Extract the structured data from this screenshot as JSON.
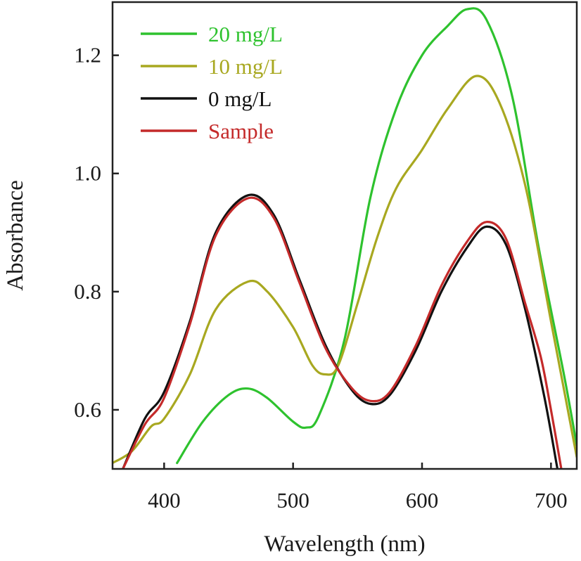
{
  "chart_data": {
    "type": "line",
    "title": "",
    "xlabel": "Wavelength (nm)",
    "ylabel": "Absorbance",
    "xlim": [
      360,
      720
    ],
    "ylim": [
      0.5,
      1.29
    ],
    "x_ticks": [
      400,
      500,
      600,
      700
    ],
    "x_tick_labels": [
      "400",
      "500",
      "600",
      "700"
    ],
    "y_ticks": [
      0.6,
      0.8,
      1.0,
      1.2
    ],
    "y_tick_labels": [
      "0.6",
      "0.8",
      "1.0",
      "1.2"
    ],
    "grid": false,
    "legend_position": "top-left",
    "series": [
      {
        "name": "20 mg/L",
        "color": "#2ec22e",
        "points": [
          [
            410,
            0.51
          ],
          [
            430,
            0.58
          ],
          [
            450,
            0.625
          ],
          [
            465,
            0.636
          ],
          [
            480,
            0.62
          ],
          [
            500,
            0.58
          ],
          [
            510,
            0.57
          ],
          [
            520,
            0.59
          ],
          [
            540,
            0.72
          ],
          [
            560,
            0.96
          ],
          [
            580,
            1.11
          ],
          [
            600,
            1.2
          ],
          [
            620,
            1.25
          ],
          [
            635,
            1.278
          ],
          [
            650,
            1.26
          ],
          [
            670,
            1.13
          ],
          [
            690,
            0.88
          ],
          [
            710,
            0.66
          ],
          [
            720,
            0.54
          ]
        ]
      },
      {
        "name": "10 mg/L",
        "color": "#a8a820",
        "points": [
          [
            360,
            0.51
          ],
          [
            375,
            0.53
          ],
          [
            390,
            0.572
          ],
          [
            400,
            0.585
          ],
          [
            420,
            0.66
          ],
          [
            440,
            0.77
          ],
          [
            465,
            0.817
          ],
          [
            480,
            0.8
          ],
          [
            500,
            0.74
          ],
          [
            515,
            0.675
          ],
          [
            525,
            0.66
          ],
          [
            535,
            0.675
          ],
          [
            550,
            0.78
          ],
          [
            565,
            0.89
          ],
          [
            580,
            0.975
          ],
          [
            600,
            1.04
          ],
          [
            620,
            1.11
          ],
          [
            642,
            1.165
          ],
          [
            660,
            1.12
          ],
          [
            680,
            0.98
          ],
          [
            700,
            0.75
          ],
          [
            720,
            0.52
          ]
        ]
      },
      {
        "name": "0 mg/L",
        "color": "#111111",
        "points": [
          [
            368,
            0.5
          ],
          [
            385,
            0.585
          ],
          [
            400,
            0.63
          ],
          [
            420,
            0.75
          ],
          [
            440,
            0.9
          ],
          [
            465,
            0.963
          ],
          [
            485,
            0.93
          ],
          [
            505,
            0.82
          ],
          [
            525,
            0.71
          ],
          [
            545,
            0.635
          ],
          [
            560,
            0.61
          ],
          [
            575,
            0.625
          ],
          [
            595,
            0.7
          ],
          [
            615,
            0.8
          ],
          [
            635,
            0.875
          ],
          [
            650,
            0.91
          ],
          [
            665,
            0.88
          ],
          [
            680,
            0.77
          ],
          [
            695,
            0.62
          ],
          [
            705,
            0.5
          ]
        ]
      },
      {
        "name": "Sample",
        "color": "#c42a2a",
        "points": [
          [
            368,
            0.5
          ],
          [
            385,
            0.575
          ],
          [
            400,
            0.62
          ],
          [
            420,
            0.745
          ],
          [
            440,
            0.895
          ],
          [
            465,
            0.958
          ],
          [
            485,
            0.925
          ],
          [
            505,
            0.815
          ],
          [
            525,
            0.705
          ],
          [
            545,
            0.638
          ],
          [
            560,
            0.615
          ],
          [
            575,
            0.63
          ],
          [
            595,
            0.708
          ],
          [
            615,
            0.81
          ],
          [
            635,
            0.885
          ],
          [
            650,
            0.918
          ],
          [
            665,
            0.89
          ],
          [
            680,
            0.78
          ],
          [
            692,
            0.69
          ],
          [
            700,
            0.6
          ],
          [
            708,
            0.5
          ]
        ]
      }
    ]
  }
}
